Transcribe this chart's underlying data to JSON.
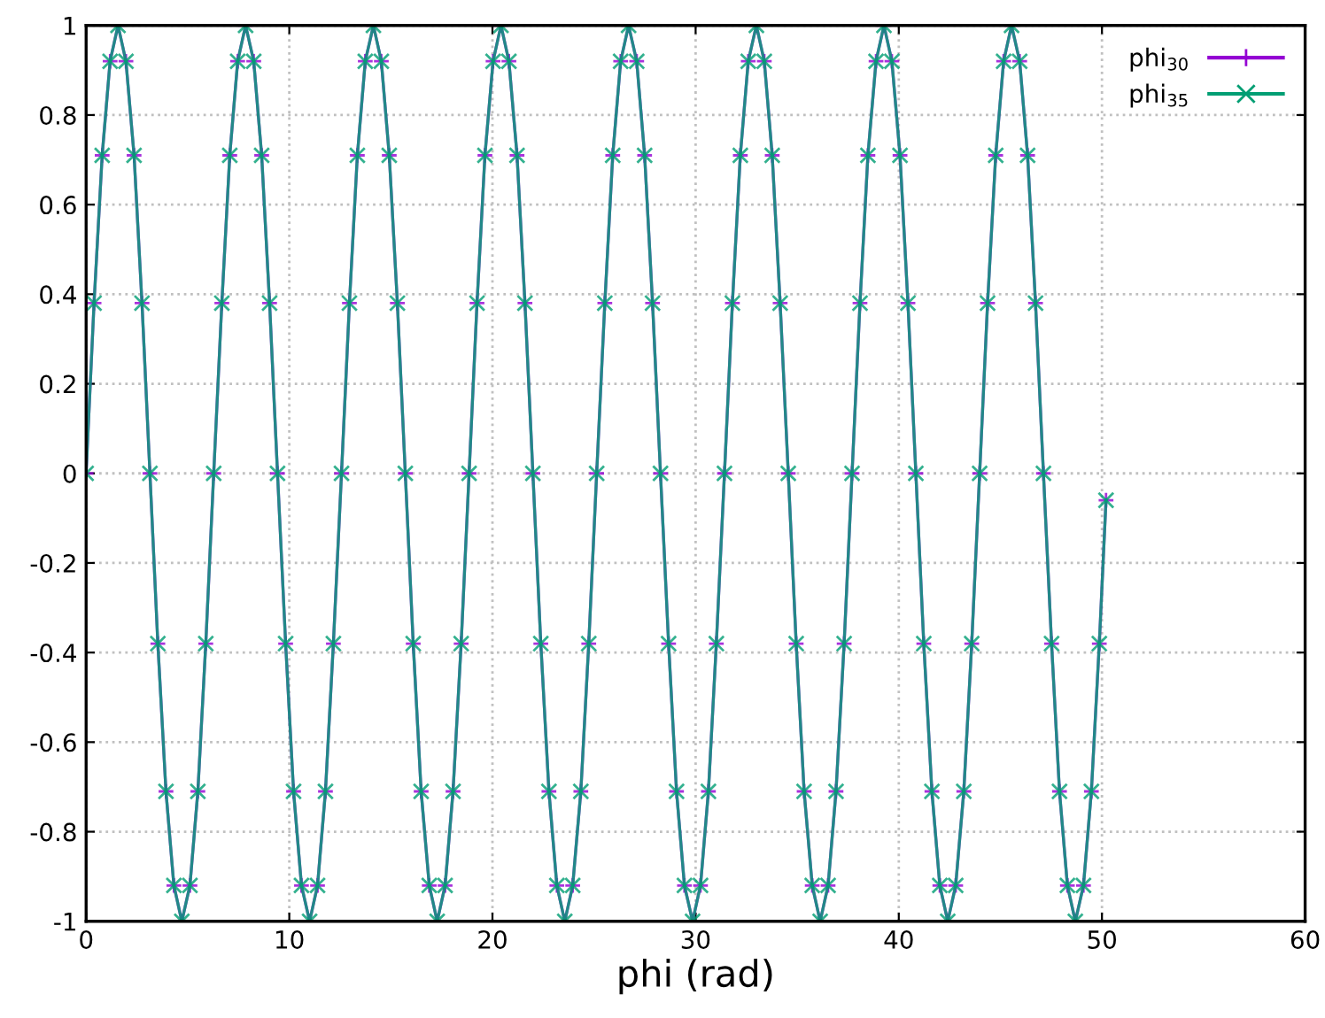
{
  "chart_data": {
    "type": "line",
    "xlabel": "phi (rad)",
    "x": [
      0,
      0.39,
      0.79,
      1.18,
      1.57,
      1.96,
      2.36,
      2.75,
      3.14,
      3.53,
      3.93,
      4.32,
      4.71,
      5.11,
      5.5,
      5.89,
      6.28,
      6.68,
      7.07,
      7.46,
      7.85,
      8.25,
      8.64,
      9.03,
      9.42,
      9.82,
      10.21,
      10.6,
      11.0,
      11.39,
      11.78,
      12.17,
      12.57,
      12.96,
      13.35,
      13.74,
      14.14,
      14.53,
      14.92,
      15.32,
      15.71,
      16.1,
      16.49,
      16.89,
      17.28,
      17.67,
      18.06,
      18.46,
      18.85,
      19.24,
      19.63,
      20.03,
      20.42,
      20.81,
      21.21,
      21.6,
      21.99,
      22.38,
      22.78,
      23.17,
      23.56,
      23.95,
      24.35,
      24.74,
      25.13,
      25.53,
      25.92,
      26.31,
      26.7,
      27.1,
      27.49,
      27.88,
      28.27,
      28.67,
      29.06,
      29.45,
      29.85,
      30.24,
      30.63,
      31.02,
      31.42,
      31.81,
      32.2,
      32.59,
      32.99,
      33.38,
      33.77,
      34.16,
      34.56,
      34.95,
      35.34,
      35.74,
      36.13,
      36.52,
      36.91,
      37.31,
      37.7,
      38.09,
      38.48,
      38.88,
      39.27,
      39.66,
      40.06,
      40.45,
      40.84,
      41.23,
      41.63,
      42.02,
      42.41,
      42.8,
      43.2,
      43.59,
      43.98,
      44.37,
      44.77,
      45.16,
      45.55,
      45.95,
      46.34,
      46.73,
      47.12,
      47.52,
      47.91,
      48.3,
      48.69,
      49.09,
      49.48,
      49.87,
      50.2
    ],
    "series": [
      {
        "name": "phi$_{30}$",
        "color": "#9400d3",
        "marker": "cross",
        "values": [
          0,
          0.38,
          0.71,
          0.92,
          1,
          0.92,
          0.71,
          0.38,
          0,
          -0.38,
          -0.71,
          -0.92,
          -1,
          -0.92,
          -0.71,
          -0.38,
          0,
          0.38,
          0.71,
          0.92,
          1,
          0.92,
          0.71,
          0.38,
          0,
          -0.38,
          -0.71,
          -0.92,
          -1,
          -0.92,
          -0.71,
          -0.38,
          0,
          0.38,
          0.71,
          0.92,
          1,
          0.92,
          0.71,
          0.38,
          0,
          -0.38,
          -0.71,
          -0.92,
          -1,
          -0.92,
          -0.71,
          -0.38,
          0,
          0.38,
          0.71,
          0.92,
          1,
          0.92,
          0.71,
          0.38,
          0,
          -0.38,
          -0.71,
          -0.92,
          -1,
          -0.92,
          -0.71,
          -0.38,
          0,
          0.38,
          0.71,
          0.92,
          1,
          0.92,
          0.71,
          0.38,
          0,
          -0.38,
          -0.71,
          -0.92,
          -1,
          -0.92,
          -0.71,
          -0.38,
          0,
          0.38,
          0.71,
          0.92,
          1,
          0.92,
          0.71,
          0.38,
          0,
          -0.38,
          -0.71,
          -0.92,
          -1,
          -0.92,
          -0.71,
          -0.38,
          0,
          0.38,
          0.71,
          0.92,
          1,
          0.92,
          0.71,
          0.38,
          0,
          -0.38,
          -0.71,
          -0.92,
          -1,
          -0.92,
          -0.71,
          -0.38,
          0,
          0.38,
          0.71,
          0.92,
          1,
          0.92,
          0.71,
          0.38,
          0,
          -0.38,
          -0.71,
          -0.92,
          -1,
          -0.92,
          -0.71,
          -0.38,
          -0.06
        ]
      },
      {
        "name": "phi$_{35}$",
        "color": "#009e73",
        "marker": "x",
        "values": [
          0,
          0.38,
          0.71,
          0.92,
          1,
          0.92,
          0.71,
          0.38,
          0,
          -0.38,
          -0.71,
          -0.92,
          -1,
          -0.92,
          -0.71,
          -0.38,
          0,
          0.38,
          0.71,
          0.92,
          1,
          0.92,
          0.71,
          0.38,
          0,
          -0.38,
          -0.71,
          -0.92,
          -1,
          -0.92,
          -0.71,
          -0.38,
          0,
          0.38,
          0.71,
          0.92,
          1,
          0.92,
          0.71,
          0.38,
          0,
          -0.38,
          -0.71,
          -0.92,
          -1,
          -0.92,
          -0.71,
          -0.38,
          0,
          0.38,
          0.71,
          0.92,
          1,
          0.92,
          0.71,
          0.38,
          0,
          -0.38,
          -0.71,
          -0.92,
          -1,
          -0.92,
          -0.71,
          -0.38,
          0,
          0.38,
          0.71,
          0.92,
          1,
          0.92,
          0.71,
          0.38,
          0,
          -0.38,
          -0.71,
          -0.92,
          -1,
          -0.92,
          -0.71,
          -0.38,
          0,
          0.38,
          0.71,
          0.92,
          1,
          0.92,
          0.71,
          0.38,
          0,
          -0.38,
          -0.71,
          -0.92,
          -1,
          -0.92,
          -0.71,
          -0.38,
          0,
          0.38,
          0.71,
          0.92,
          1,
          0.92,
          0.71,
          0.38,
          0,
          -0.38,
          -0.71,
          -0.92,
          -1,
          -0.92,
          -0.71,
          -0.38,
          0,
          0.38,
          0.71,
          0.92,
          1,
          0.92,
          0.71,
          0.38,
          0,
          -0.38,
          -0.71,
          -0.92,
          -1,
          -0.92,
          -0.71,
          -0.38,
          -0.06
        ]
      }
    ],
    "xlim": [
      0,
      60
    ],
    "xticks": [
      0,
      10,
      20,
      30,
      40,
      50,
      60
    ],
    "ylim": [
      -1,
      1
    ],
    "yticks": [
      -1,
      -0.8,
      -0.6,
      -0.4,
      -0.2,
      0,
      0.2,
      0.4,
      0.6,
      0.8,
      1
    ],
    "grid": true,
    "legend": "top right",
    "line_style": "solid"
  }
}
